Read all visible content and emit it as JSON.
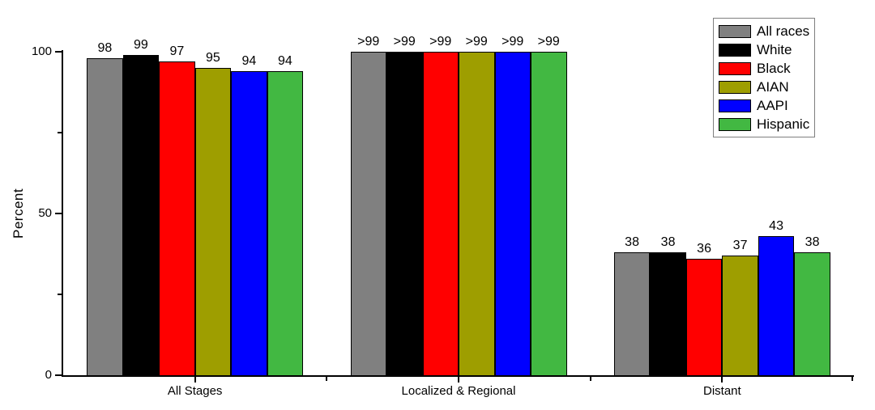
{
  "chart_data": {
    "type": "bar",
    "title": "",
    "xlabel": "",
    "ylabel": "Percent",
    "ylim": [
      0,
      100
    ],
    "yticks_major": [
      0,
      50,
      100
    ],
    "yticks_minor": [
      25,
      75
    ],
    "grid": false,
    "legend_position": "top-right",
    "categories": [
      "All Stages",
      "Localized & Regional",
      "Distant"
    ],
    "series": [
      {
        "name": "All races",
        "color": "#808080",
        "values": [
          98,
          100,
          38
        ],
        "value_labels": [
          "98",
          ">99",
          "38"
        ]
      },
      {
        "name": "White",
        "color": "#000000",
        "values": [
          99,
          100,
          38
        ],
        "value_labels": [
          "99",
          ">99",
          "38"
        ]
      },
      {
        "name": "Black",
        "color": "#FF0000",
        "values": [
          97,
          100,
          36
        ],
        "value_labels": [
          "97",
          ">99",
          "36"
        ]
      },
      {
        "name": "AIAN",
        "color": "#9E9E00",
        "values": [
          95,
          100,
          37
        ],
        "value_labels": [
          "95",
          ">99",
          "37"
        ]
      },
      {
        "name": "AAPI",
        "color": "#0000FF",
        "values": [
          94,
          100,
          43
        ],
        "value_labels": [
          "94",
          ">99",
          "43"
        ]
      },
      {
        "name": "Hispanic",
        "color": "#42B842",
        "values": [
          94,
          100,
          38
        ],
        "value_labels": [
          "94",
          ">99",
          "38"
        ]
      }
    ]
  }
}
